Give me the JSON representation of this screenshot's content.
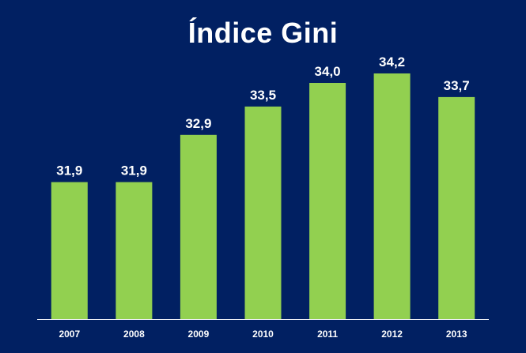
{
  "colors": {
    "background": "#012062",
    "bar": "#92d050",
    "text": "#ffffff",
    "axis": "#ffffff"
  },
  "chart_data": {
    "type": "bar",
    "title": "Índice Gini",
    "categories": [
      "2007",
      "2008",
      "2009",
      "2010",
      "2011",
      "2012",
      "2013"
    ],
    "values": [
      31.9,
      31.9,
      32.9,
      33.5,
      34.0,
      34.2,
      33.7
    ],
    "value_labels": [
      "31,9",
      "31,9",
      "32,9",
      "33,5",
      "34,0",
      "34,2",
      "33,7"
    ],
    "xlabel": "",
    "ylabel": "",
    "ylim": [
      29.0,
      34.2
    ],
    "grid": false,
    "legend": "none"
  }
}
